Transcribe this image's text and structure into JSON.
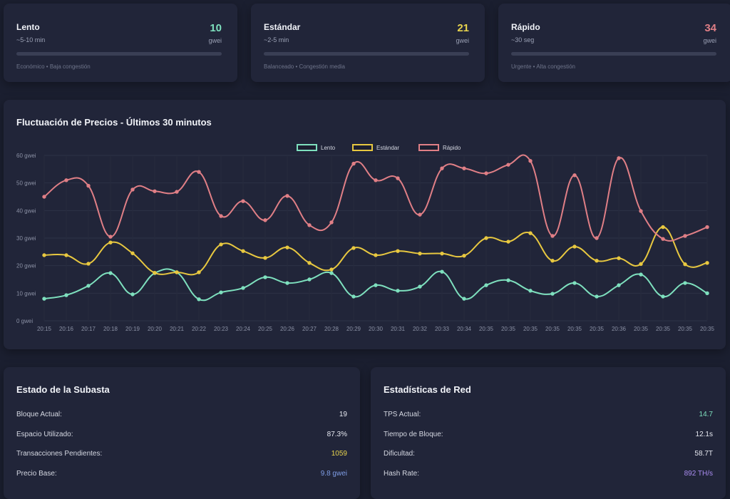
{
  "fees": [
    {
      "name": "Lento",
      "time": "~5-10 min",
      "value": "10",
      "unit": "gwei",
      "desc": "Económico • Baja congestión",
      "color": "#7ee0be",
      "progress": 0
    },
    {
      "name": "Estándar",
      "time": "~2-5 min",
      "value": "21",
      "unit": "gwei",
      "desc": "Balanceado • Congestión media",
      "color": "#e8d44d",
      "progress": 0
    },
    {
      "name": "Rápido",
      "time": "~30 seg",
      "value": "34",
      "unit": "gwei",
      "desc": "Urgente • Alta congestión",
      "color": "#e07f86",
      "progress": 0
    }
  ],
  "chart_data": {
    "type": "line",
    "title": "Fluctuación de Precios - Últimos 30 minutos",
    "legend_position": "top",
    "grid": true,
    "ylim": [
      0,
      60
    ],
    "yticks": [
      "0 gwei",
      "10 gwei",
      "20 gwei",
      "30 gwei",
      "40 gwei",
      "50 gwei",
      "60 gwei"
    ],
    "categories": [
      "20:15",
      "20:16",
      "20:17",
      "20:18",
      "20:19",
      "20:20",
      "20:21",
      "20:22",
      "20:23",
      "20:24",
      "20:25",
      "20:26",
      "20:27",
      "20:28",
      "20:29",
      "20:30",
      "20:31",
      "20:32",
      "20:33",
      "20:34",
      "20:35",
      "20:35",
      "20:35",
      "20:35",
      "20:35",
      "20:35",
      "20:36",
      "20:35",
      "20:35",
      "20:35",
      "20:35"
    ],
    "series": [
      {
        "name": "Lento",
        "color": "#7ee0be",
        "values": [
          8,
          9.3,
          12.7,
          17.3,
          9.6,
          17.3,
          17.6,
          7.8,
          10.3,
          11.9,
          15.8,
          13.7,
          15,
          17.3,
          8.8,
          12.9,
          10.9,
          12.4,
          17.8,
          8,
          12.9,
          14.7,
          10.9,
          9.8,
          13.7,
          8.8,
          12.9,
          16.8,
          8.8,
          13.7,
          10
        ]
      },
      {
        "name": "Estándar",
        "color": "#e8c840",
        "values": [
          23.8,
          23.8,
          20.7,
          28.4,
          24.5,
          17.4,
          17.6,
          17.6,
          27.7,
          25.3,
          22.8,
          26.6,
          21,
          18.6,
          26.4,
          23.8,
          25.3,
          24.4,
          24.4,
          23.6,
          30,
          28.7,
          31.8,
          21.8,
          26.9,
          21.8,
          22.7,
          20.6,
          34,
          20.5,
          21
        ]
      },
      {
        "name": "Rápido",
        "color": "#e07f86",
        "values": [
          45,
          51,
          49,
          30.5,
          47.6,
          47,
          46.8,
          54,
          38,
          43.4,
          36.5,
          45.3,
          34.7,
          35.7,
          57,
          51,
          51.7,
          38.5,
          55.3,
          55.3,
          53.5,
          56.6,
          58,
          30.8,
          52.8,
          30,
          59,
          39.8,
          29.7,
          30.8,
          34
        ]
      }
    ]
  },
  "auction": {
    "title": "Estado de la Subasta",
    "rows": [
      {
        "label": "Bloque Actual:",
        "value": "19",
        "color": "#e6e8f0"
      },
      {
        "label": "Espacio Utilizado:",
        "value": "87.3%",
        "color": "#e6e8f0"
      },
      {
        "label": "Transacciones Pendientes:",
        "value": "1059",
        "color": "#e8d44d"
      },
      {
        "label": "Precio Base:",
        "value": "9.8 gwei",
        "color": "#7f9de6"
      }
    ]
  },
  "network": {
    "title": "Estadísticas de Red",
    "rows": [
      {
        "label": "TPS Actual:",
        "value": "14.7",
        "color": "#7ee0be"
      },
      {
        "label": "Tiempo de Bloque:",
        "value": "12.1s",
        "color": "#e6e8f0"
      },
      {
        "label": "Dificultad:",
        "value": "58.7T",
        "color": "#e6e8f0"
      },
      {
        "label": "Hash Rate:",
        "value": "892 TH/s",
        "color": "#a98cf0"
      }
    ]
  }
}
